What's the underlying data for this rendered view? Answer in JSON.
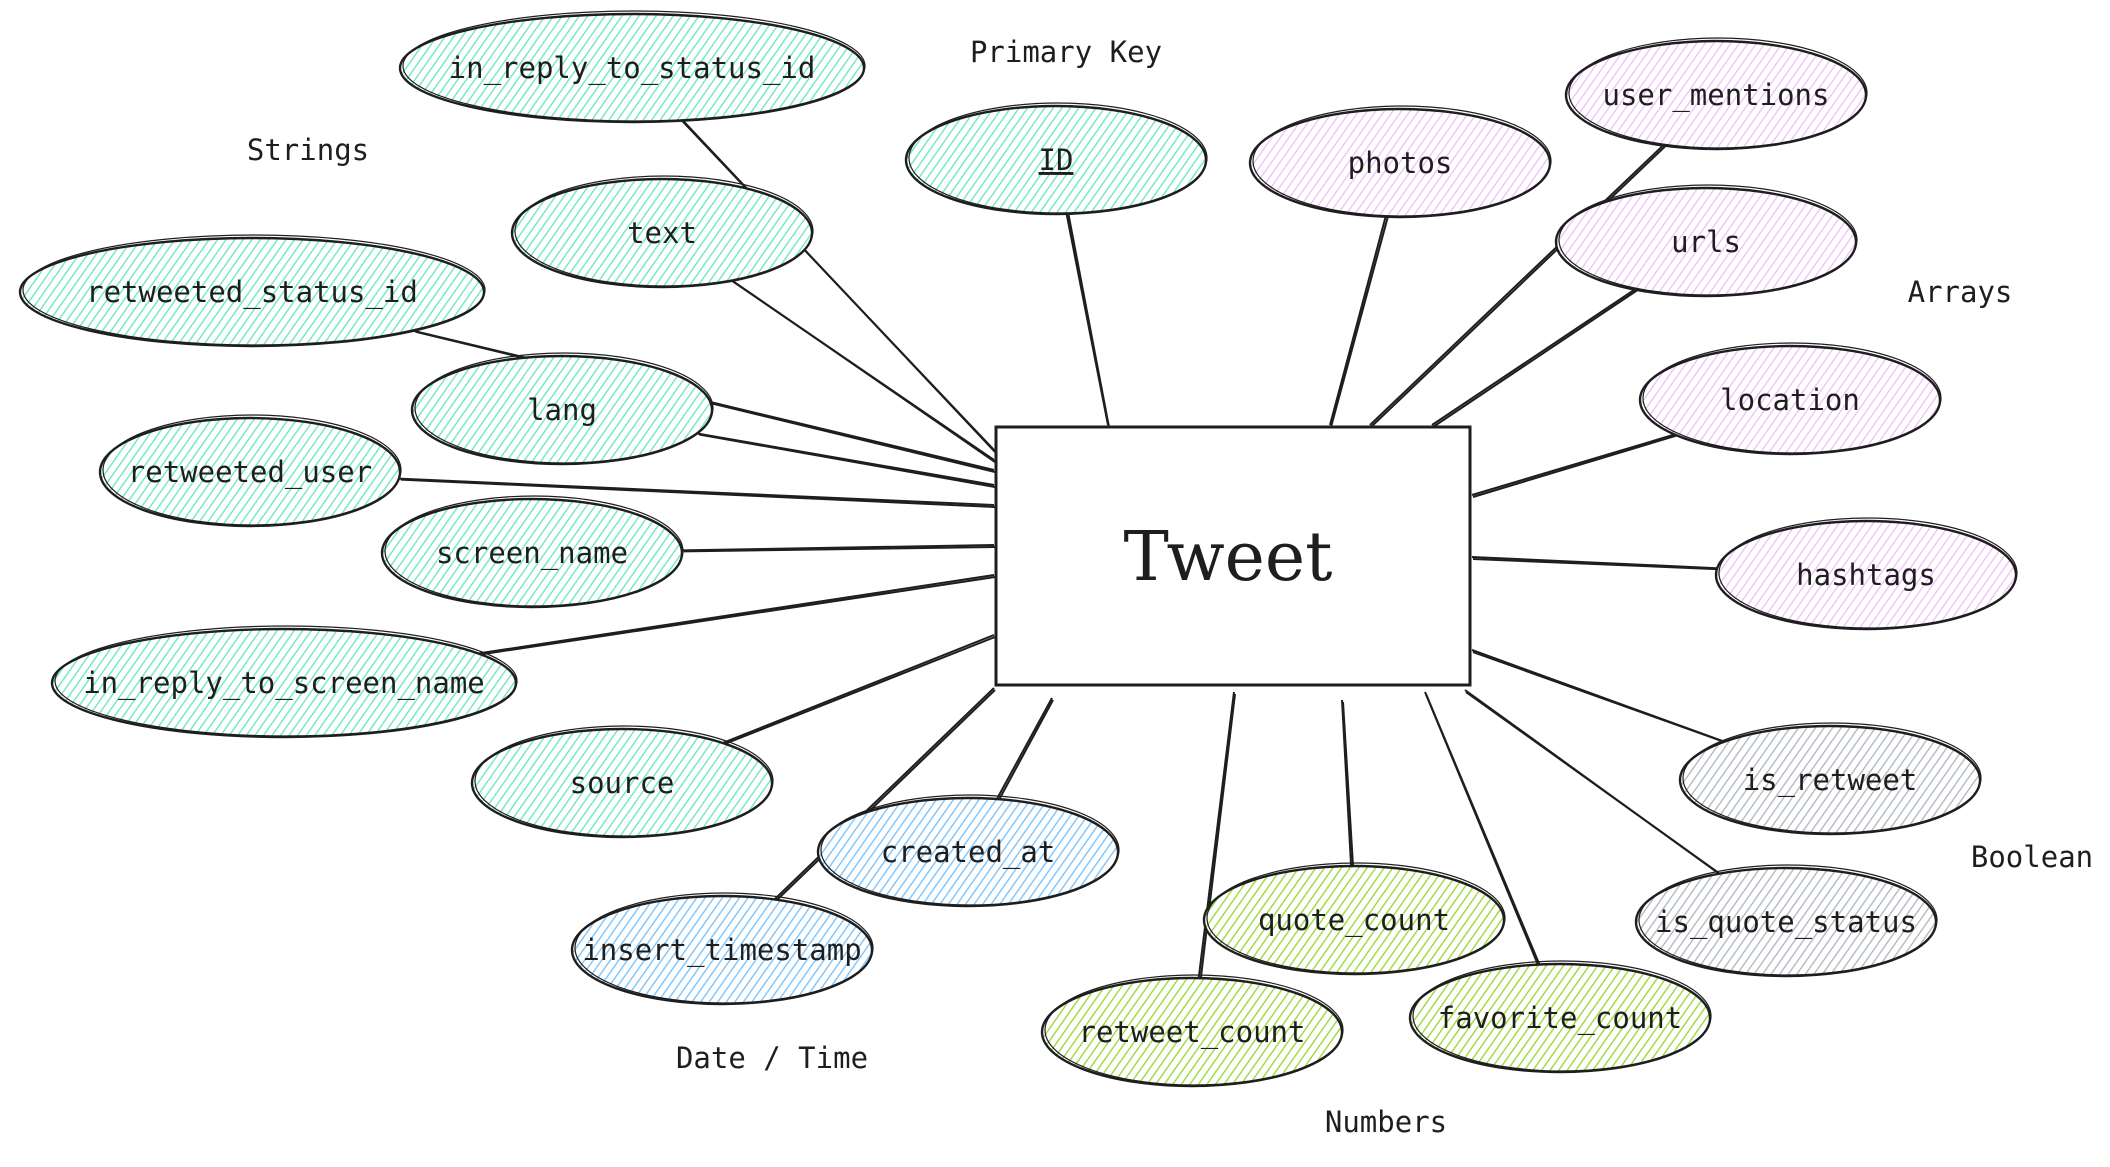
{
  "colors": {
    "Strings": "#63e6be",
    "Primary Key": "#63e6be",
    "Arrays": "#eebefa",
    "Date / Time": "#74c0fc",
    "Numbers": "#94d82d",
    "Boolean": "#adb5bd",
    "stroke": "#1e1e1e"
  },
  "entity": {
    "label": "Tweet"
  },
  "groups": [
    {
      "key": "primary_key",
      "label": "Primary Key"
    },
    {
      "key": "strings",
      "label": "Strings"
    },
    {
      "key": "arrays",
      "label": "Arrays"
    },
    {
      "key": "boolean",
      "label": "Boolean"
    },
    {
      "key": "date_time",
      "label": "Date / Time"
    },
    {
      "key": "numbers",
      "label": "Numbers"
    }
  ],
  "attributes": [
    {
      "label": "in_reply_to_status_id",
      "group": "Strings"
    },
    {
      "label": "ID",
      "group": "Primary Key"
    },
    {
      "label": "photos",
      "group": "Arrays"
    },
    {
      "label": "user_mentions",
      "group": "Arrays"
    },
    {
      "label": "text",
      "group": "Strings"
    },
    {
      "label": "retweeted_status_id",
      "group": "Strings"
    },
    {
      "label": "urls",
      "group": "Arrays"
    },
    {
      "label": "lang",
      "group": "Strings"
    },
    {
      "label": "location",
      "group": "Arrays"
    },
    {
      "label": "retweeted_user",
      "group": "Strings"
    },
    {
      "label": "screen_name",
      "group": "Strings"
    },
    {
      "label": "hashtags",
      "group": "Arrays"
    },
    {
      "label": "in_reply_to_screen_name",
      "group": "Strings"
    },
    {
      "label": "source",
      "group": "Strings"
    },
    {
      "label": "is_retweet",
      "group": "Boolean"
    },
    {
      "label": "created_at",
      "group": "Date / Time"
    },
    {
      "label": "is_quote_status",
      "group": "Boolean"
    },
    {
      "label": "quote_count",
      "group": "Numbers"
    },
    {
      "label": "insert_timestamp",
      "group": "Date / Time"
    },
    {
      "label": "retweet_count",
      "group": "Numbers"
    },
    {
      "label": "favorite_count",
      "group": "Numbers"
    }
  ]
}
